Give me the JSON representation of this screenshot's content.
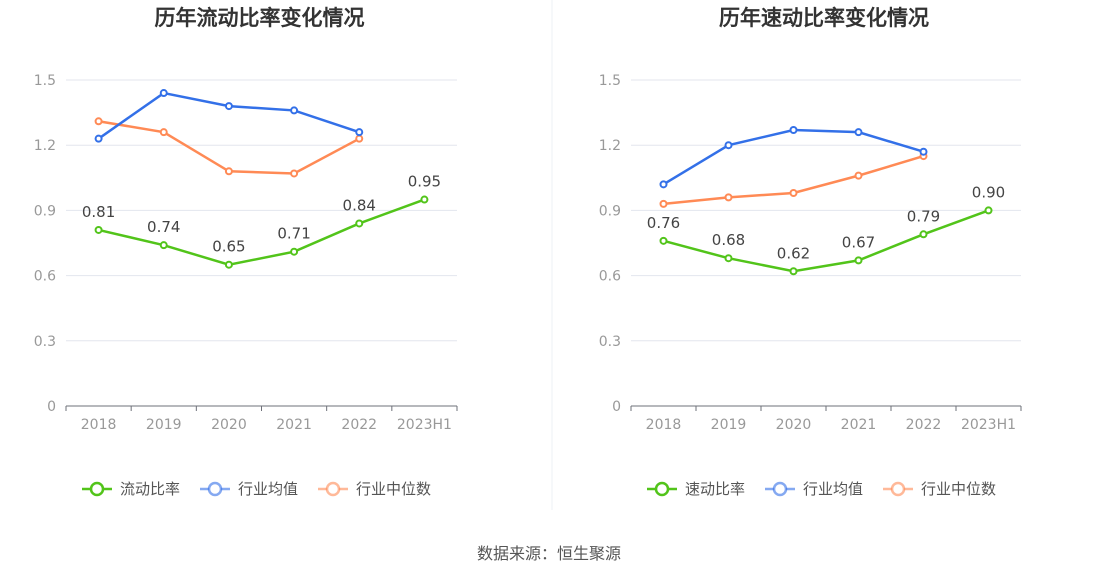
{
  "colors": {
    "main": "#52c41a",
    "avg": "#3370e8",
    "median": "#ff8a55"
  },
  "chart_data": [
    {
      "type": "line",
      "title": "历年流动比率变化情况",
      "categories": [
        "2018",
        "2019",
        "2020",
        "2021",
        "2022",
        "2023H1"
      ],
      "yticks": [
        "0",
        "0.3",
        "0.6",
        "0.9",
        "1.2",
        "1.5"
      ],
      "ylim": [
        0,
        1.5
      ],
      "series": [
        {
          "name": "流动比率",
          "values": [
            0.81,
            0.74,
            0.65,
            0.71,
            0.84,
            0.95
          ],
          "labels": [
            "0.81",
            "0.74",
            "0.65",
            "0.71",
            "0.84",
            "0.95"
          ]
        },
        {
          "name": "行业均值",
          "values": [
            1.23,
            1.44,
            1.38,
            1.36,
            1.26,
            null
          ]
        },
        {
          "name": "行业中位数",
          "values": [
            1.31,
            1.26,
            1.08,
            1.07,
            1.23,
            null
          ]
        }
      ]
    },
    {
      "type": "line",
      "title": "历年速动比率变化情况",
      "categories": [
        "2018",
        "2019",
        "2020",
        "2021",
        "2022",
        "2023H1"
      ],
      "yticks": [
        "0",
        "0.3",
        "0.6",
        "0.9",
        "1.2",
        "1.5"
      ],
      "ylim": [
        0,
        1.5
      ],
      "series": [
        {
          "name": "速动比率",
          "values": [
            0.76,
            0.68,
            0.62,
            0.67,
            0.79,
            0.9
          ],
          "labels": [
            "0.76",
            "0.68",
            "0.62",
            "0.67",
            "0.79",
            "0.90"
          ]
        },
        {
          "name": "行业均值",
          "values": [
            1.02,
            1.2,
            1.27,
            1.26,
            1.17,
            null
          ]
        },
        {
          "name": "行业中位数",
          "values": [
            0.93,
            0.96,
            0.98,
            1.06,
            1.15,
            null
          ]
        }
      ]
    }
  ],
  "source": "数据来源：恒生聚源"
}
